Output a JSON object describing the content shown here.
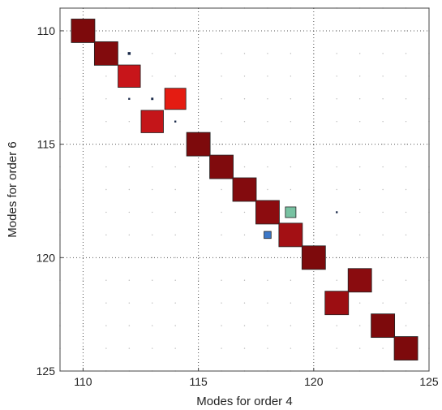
{
  "chart_data": {
    "type": "scatter",
    "title": "",
    "xlabel": "Modes for order 4",
    "ylabel": "Modes for order 6",
    "xlim": [
      109,
      125
    ],
    "ylim": [
      109,
      125
    ],
    "y_reversed": true,
    "x_ticks": [
      "110",
      "115",
      "120",
      "125"
    ],
    "y_ticks": [
      "110",
      "115",
      "120",
      "125"
    ],
    "grid": "major dotted, minor dotted points",
    "marker": "filled square, size ~ magnitude, color = value",
    "points": [
      {
        "x": 110,
        "y": 110,
        "size": 1.0,
        "color": "#7d0a0c"
      },
      {
        "x": 111,
        "y": 111,
        "size": 1.0,
        "color": "#820b0d"
      },
      {
        "x": 112,
        "y": 112,
        "size": 0.95,
        "color": "#c8151a"
      },
      {
        "x": 114,
        "y": 113,
        "size": 0.9,
        "color": "#e41c12"
      },
      {
        "x": 113,
        "y": 114,
        "size": 0.95,
        "color": "#c41519"
      },
      {
        "x": 115,
        "y": 115,
        "size": 1.0,
        "color": "#7d0a0c"
      },
      {
        "x": 116,
        "y": 116,
        "size": 1.0,
        "color": "#800b0d"
      },
      {
        "x": 117,
        "y": 117,
        "size": 1.0,
        "color": "#830b0e"
      },
      {
        "x": 118,
        "y": 118,
        "size": 1.0,
        "color": "#8c0c0f"
      },
      {
        "x": 119,
        "y": 118,
        "size": 0.45,
        "color": "#78c2a2"
      },
      {
        "x": 118,
        "y": 119,
        "size": 0.3,
        "color": "#3c78c8"
      },
      {
        "x": 119,
        "y": 119,
        "size": 1.0,
        "color": "#a31014"
      },
      {
        "x": 120,
        "y": 120,
        "size": 1.0,
        "color": "#7d0a0c"
      },
      {
        "x": 122,
        "y": 121,
        "size": 1.0,
        "color": "#8a0c0f"
      },
      {
        "x": 121,
        "y": 122,
        "size": 1.0,
        "color": "#9c0e12"
      },
      {
        "x": 123,
        "y": 123,
        "size": 1.0,
        "color": "#7d0a0c"
      },
      {
        "x": 124,
        "y": 124,
        "size": 1.0,
        "color": "#7d0a0c"
      },
      {
        "x": 112,
        "y": 111,
        "size": 0.12,
        "color": "#1a2a4a"
      },
      {
        "x": 112,
        "y": 113,
        "size": 0.08,
        "color": "#1a2a4a"
      },
      {
        "x": 113,
        "y": 113,
        "size": 0.1,
        "color": "#1a2a4a"
      },
      {
        "x": 114,
        "y": 114,
        "size": 0.08,
        "color": "#1a2a4a"
      },
      {
        "x": 121,
        "y": 118,
        "size": 0.08,
        "color": "#1a2a4a"
      }
    ]
  }
}
